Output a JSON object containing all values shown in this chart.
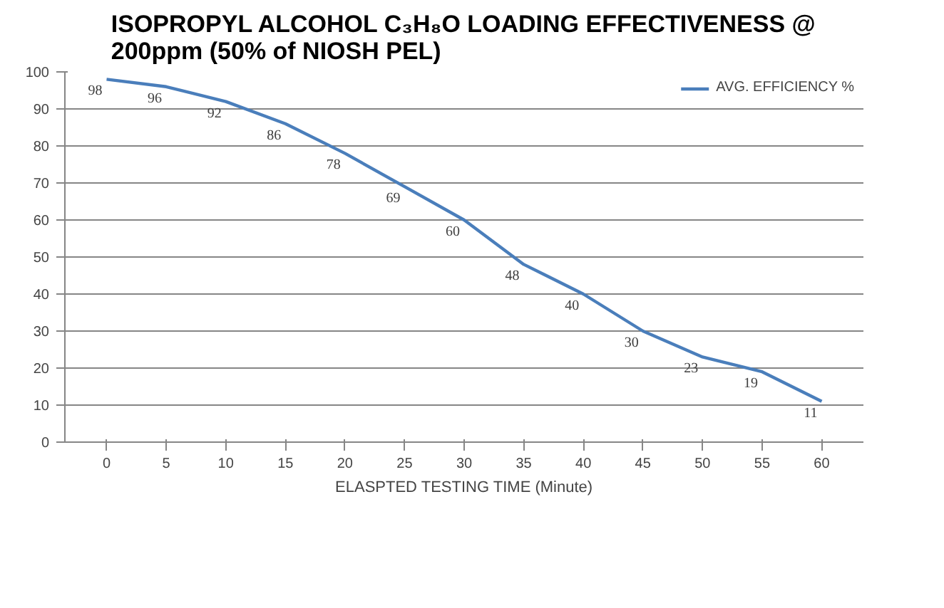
{
  "chart_data": {
    "type": "line",
    "title": "ISOPROPYL ALCOHOL C₃H₈O LOADING EFFECTIVENESS @ 200ppm (50% of NIOSH PEL)",
    "xlabel": "ELASPTED TESTING TIME (Minute)",
    "categories": [
      "0",
      "5",
      "10",
      "15",
      "20",
      "25",
      "30",
      "35",
      "40",
      "45",
      "50",
      "55",
      "60"
    ],
    "series": [
      {
        "name": "AVG. EFFICIENCY %",
        "color": "#4a7ebb",
        "values": [
          98,
          96,
          92,
          86,
          78,
          69,
          60,
          48,
          40,
          30,
          23,
          19,
          11
        ]
      }
    ],
    "ylim": [
      0,
      100
    ],
    "yticks": [
      0,
      10,
      20,
      30,
      40,
      50,
      60,
      70,
      80,
      90,
      100
    ],
    "grid": "y",
    "legend": "top right",
    "data_labels": true,
    "marker": "none",
    "line_style": "solid"
  }
}
